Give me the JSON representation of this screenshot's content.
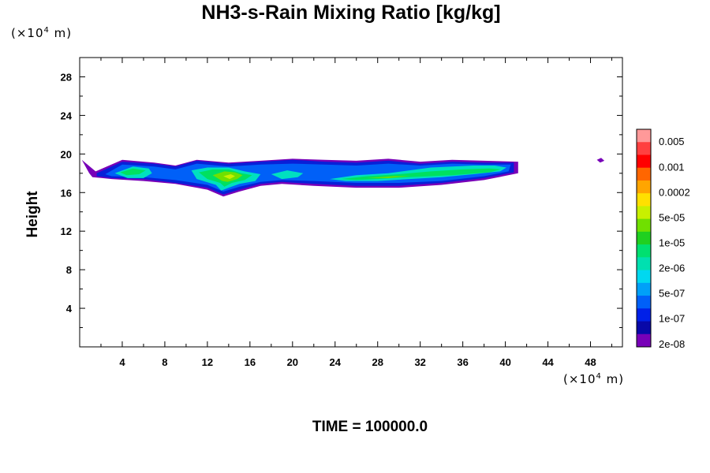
{
  "chart_data": {
    "type": "filled-contour",
    "title": "NH3-s-Rain Mixing Ratio [kg/kg]",
    "ylabel": "Height",
    "y_unit": {
      "prefix": "(×10",
      "exp": "4",
      "suffix": " m)"
    },
    "x_unit": {
      "prefix": "(×10",
      "exp": "4",
      "suffix": " m)"
    },
    "footer": "TIME = 100000.0",
    "xlim": [
      0,
      51
    ],
    "ylim": [
      0,
      30
    ],
    "x_ticks": [
      4,
      8,
      12,
      16,
      20,
      24,
      28,
      32,
      36,
      40,
      44,
      48
    ],
    "y_ticks": [
      4,
      8,
      12,
      16,
      20,
      24,
      28
    ],
    "colorbar": {
      "labels": [
        "0.005",
        "0.001",
        "0.0002",
        "5e-05",
        "1e-05",
        "2e-06",
        "5e-07",
        "1e-07",
        "2e-08"
      ],
      "colors": [
        "#ff9999",
        "#ff4040",
        "#ff0000",
        "#ff6600",
        "#ffa500",
        "#ffe000",
        "#c8f000",
        "#70e000",
        "#20d020",
        "#00e070",
        "#00e0b0",
        "#00d8f0",
        "#00a0f8",
        "#0060f8",
        "#0020e8",
        "#0808a8",
        "#7800b8"
      ]
    },
    "bands": [
      {
        "level": 0,
        "pts": [
          [
            0.2,
            19.4
          ],
          [
            1.5,
            18.2
          ],
          [
            4,
            19.4
          ],
          [
            7,
            19.1
          ],
          [
            9,
            18.8
          ],
          [
            11,
            19.4
          ],
          [
            14,
            19.1
          ],
          [
            17,
            19.3
          ],
          [
            20,
            19.5
          ],
          [
            23,
            19.4
          ],
          [
            26,
            19.3
          ],
          [
            29,
            19.5
          ],
          [
            32,
            19.2
          ],
          [
            35,
            19.4
          ],
          [
            38,
            19.3
          ],
          [
            41.2,
            19.2
          ],
          [
            41.2,
            18.0
          ],
          [
            38,
            17.3
          ],
          [
            34,
            16.8
          ],
          [
            30,
            16.5
          ],
          [
            26,
            16.5
          ],
          [
            22,
            16.7
          ],
          [
            19,
            16.9
          ],
          [
            17,
            16.7
          ],
          [
            15,
            16.1
          ],
          [
            13.5,
            15.6
          ],
          [
            12,
            16.3
          ],
          [
            9,
            16.9
          ],
          [
            6,
            17.2
          ],
          [
            3,
            17.4
          ],
          [
            1.2,
            17.6
          ],
          [
            0.9,
            18.0
          ]
        ]
      },
      {
        "level": 1,
        "pts": [
          [
            1.6,
            18.0
          ],
          [
            4,
            19.2
          ],
          [
            7,
            19.0
          ],
          [
            9,
            18.7
          ],
          [
            11,
            19.3
          ],
          [
            14,
            19.0
          ],
          [
            17,
            19.2
          ],
          [
            20,
            19.4
          ],
          [
            23,
            19.2
          ],
          [
            26,
            19.1
          ],
          [
            29,
            19.3
          ],
          [
            32,
            19.0
          ],
          [
            35,
            19.2
          ],
          [
            38,
            19.1
          ],
          [
            40.8,
            19.1
          ],
          [
            40.8,
            18.1
          ],
          [
            38,
            17.5
          ],
          [
            34,
            17.0
          ],
          [
            30,
            16.7
          ],
          [
            26,
            16.7
          ],
          [
            22,
            16.9
          ],
          [
            19,
            17.1
          ],
          [
            17,
            16.9
          ],
          [
            15,
            16.3
          ],
          [
            13.5,
            15.8
          ],
          [
            12,
            16.5
          ],
          [
            9,
            17.0
          ],
          [
            6,
            17.4
          ],
          [
            3,
            17.5
          ],
          [
            1.6,
            17.7
          ]
        ]
      },
      {
        "level": 2,
        "pts": [
          [
            2.4,
            17.9
          ],
          [
            4,
            18.9
          ],
          [
            7,
            18.7
          ],
          [
            9,
            18.4
          ],
          [
            11,
            19.0
          ],
          [
            14,
            18.7
          ],
          [
            17,
            18.9
          ],
          [
            20,
            19.0
          ],
          [
            23,
            18.9
          ],
          [
            26,
            18.8
          ],
          [
            29,
            19.0
          ],
          [
            32,
            18.8
          ],
          [
            35,
            19.0
          ],
          [
            38,
            18.9
          ],
          [
            40.5,
            18.9
          ],
          [
            40.3,
            18.2
          ],
          [
            38,
            17.7
          ],
          [
            34,
            17.2
          ],
          [
            30,
            17.0
          ],
          [
            26,
            17.0
          ],
          [
            22,
            17.2
          ],
          [
            19,
            17.3
          ],
          [
            17,
            17.1
          ],
          [
            15,
            16.6
          ],
          [
            13.5,
            16.1
          ],
          [
            12,
            16.8
          ],
          [
            9,
            17.3
          ],
          [
            6,
            17.6
          ],
          [
            3,
            17.7
          ]
        ]
      },
      {
        "level": 3,
        "pts": [
          [
            3.3,
            18.0
          ],
          [
            5,
            18.7
          ],
          [
            6.5,
            18.5
          ],
          [
            6.8,
            18.0
          ],
          [
            6,
            17.5
          ],
          [
            4.5,
            17.5
          ]
        ]
      },
      {
        "level": 3,
        "pts": [
          [
            10.5,
            18.3
          ],
          [
            12,
            18.6
          ],
          [
            14,
            18.6
          ],
          [
            15.5,
            18.2
          ],
          [
            17,
            17.9
          ],
          [
            16.5,
            17.2
          ],
          [
            15,
            16.9
          ],
          [
            14,
            16.5
          ],
          [
            13.3,
            16.2
          ],
          [
            12.8,
            16.8
          ],
          [
            11,
            17.4
          ]
        ]
      },
      {
        "level": 3,
        "pts": [
          [
            18,
            17.9
          ],
          [
            19.5,
            18.3
          ],
          [
            21,
            18.0
          ],
          [
            20.5,
            17.6
          ],
          [
            19,
            17.4
          ]
        ]
      },
      {
        "level": 3,
        "pts": [
          [
            23.5,
            17.4
          ],
          [
            26,
            17.8
          ],
          [
            29,
            18.0
          ],
          [
            31,
            18.3
          ],
          [
            33,
            18.6
          ],
          [
            35,
            18.7
          ],
          [
            37,
            18.8
          ],
          [
            39,
            18.8
          ],
          [
            40.1,
            18.6
          ],
          [
            39.5,
            18.2
          ],
          [
            37,
            17.9
          ],
          [
            34,
            17.6
          ],
          [
            31,
            17.4
          ],
          [
            28,
            17.2
          ],
          [
            25,
            17.2
          ]
        ]
      },
      {
        "level": 4,
        "pts": [
          [
            3.8,
            18.1
          ],
          [
            5,
            18.5
          ],
          [
            6.2,
            18.3
          ],
          [
            5.6,
            17.9
          ],
          [
            4.4,
            17.8
          ]
        ]
      },
      {
        "level": 4,
        "pts": [
          [
            11.2,
            18.1
          ],
          [
            12.5,
            18.4
          ],
          [
            14,
            18.4
          ],
          [
            15.2,
            18.0
          ],
          [
            16.2,
            17.8
          ],
          [
            15.5,
            17.3
          ],
          [
            14.3,
            17.0
          ],
          [
            13.6,
            16.6
          ],
          [
            13.2,
            17.0
          ],
          [
            12,
            17.4
          ]
        ]
      },
      {
        "level": 4,
        "pts": [
          [
            24.5,
            17.4
          ],
          [
            27,
            17.7
          ],
          [
            30,
            17.9
          ],
          [
            33,
            18.2
          ],
          [
            36,
            18.4
          ],
          [
            38.5,
            18.5
          ],
          [
            39.6,
            18.4
          ],
          [
            38.5,
            18.1
          ],
          [
            35,
            17.8
          ],
          [
            31,
            17.6
          ],
          [
            28,
            17.4
          ],
          [
            26,
            17.3
          ]
        ]
      },
      {
        "level": 5,
        "pts": [
          [
            12.5,
            17.8
          ],
          [
            13.6,
            18.2
          ],
          [
            14.6,
            18.1
          ],
          [
            15.3,
            17.8
          ],
          [
            14.8,
            17.4
          ],
          [
            13.9,
            17.1
          ],
          [
            13.4,
            17.2
          ]
        ]
      },
      {
        "level": 5,
        "pts": [
          [
            27,
            17.5
          ],
          [
            29.5,
            17.7
          ],
          [
            31,
            17.7
          ],
          [
            29,
            17.5
          ]
        ]
      },
      {
        "level": 6,
        "pts": [
          [
            13.5,
            17.7
          ],
          [
            14.2,
            17.9
          ],
          [
            14.6,
            17.7
          ],
          [
            14.1,
            17.4
          ]
        ]
      },
      {
        "level": 0,
        "pts": [
          [
            48.6,
            19.4
          ],
          [
            49.0,
            19.6
          ],
          [
            49.3,
            19.3
          ],
          [
            48.9,
            19.1
          ]
        ]
      }
    ]
  }
}
